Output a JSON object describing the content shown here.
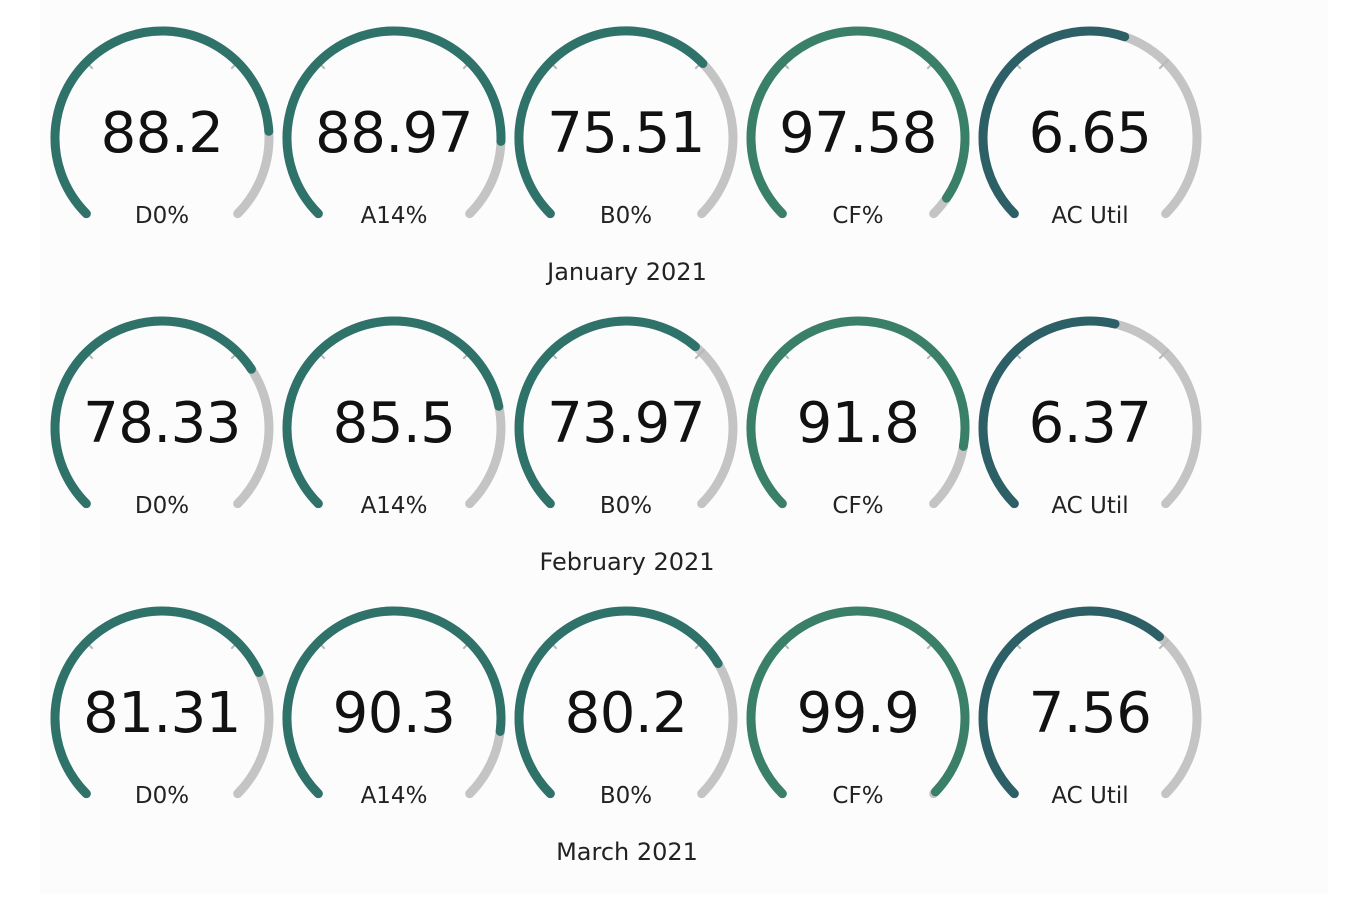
{
  "colors": {
    "track": "#c4c4c4",
    "tick": "#b8b8b8",
    "fill_default": "#2e7269",
    "fill_cf": "#3a8068",
    "fill_ac": "#2c6066"
  },
  "months": [
    {
      "title": "January 2021",
      "gauges": [
        {
          "value": "88.2",
          "label": "D0%",
          "fraction": 0.82
        },
        {
          "value": "88.97",
          "label": "A14%",
          "fraction": 0.84
        },
        {
          "value": "75.51",
          "label": "B0%",
          "fraction": 0.67
        },
        {
          "value": "97.58",
          "label": "CF%",
          "fraction": 0.96
        },
        {
          "value": "6.65",
          "label": "AC Util",
          "fraction": 0.57
        }
      ]
    },
    {
      "title": "February 2021",
      "gauges": [
        {
          "value": "78.33",
          "label": "D0%",
          "fraction": 0.71
        },
        {
          "value": "85.5",
          "label": "A14%",
          "fraction": 0.79
        },
        {
          "value": "73.97",
          "label": "B0%",
          "fraction": 0.65
        },
        {
          "value": "91.8",
          "label": "CF%",
          "fraction": 0.87
        },
        {
          "value": "6.37",
          "label": "AC Util",
          "fraction": 0.55
        }
      ]
    },
    {
      "title": "March 2021",
      "gauges": [
        {
          "value": "81.31",
          "label": "D0%",
          "fraction": 0.74
        },
        {
          "value": "90.3",
          "label": "A14%",
          "fraction": 0.86
        },
        {
          "value": "80.2",
          "label": "B0%",
          "fraction": 0.72
        },
        {
          "value": "99.9",
          "label": "CF%",
          "fraction": 0.995
        },
        {
          "value": "7.56",
          "label": "AC Util",
          "fraction": 0.65
        }
      ]
    }
  ]
}
